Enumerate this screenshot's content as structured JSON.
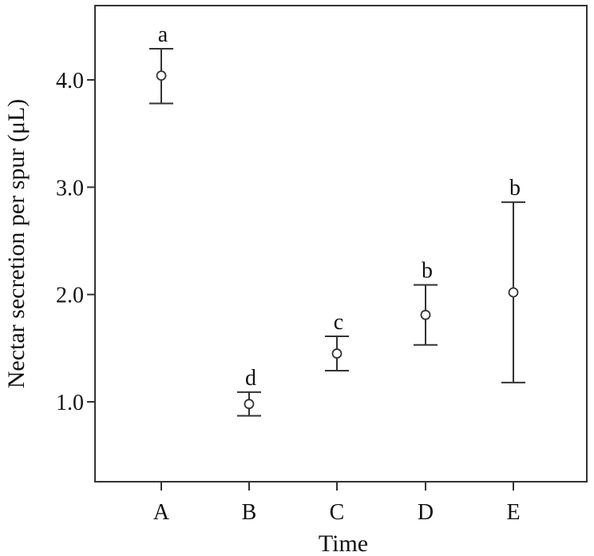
{
  "chart_data": {
    "type": "scatter",
    "title": "",
    "xlabel": "Time",
    "ylabel": "Nectar secretion per spur (μL)",
    "categories": [
      "A",
      "B",
      "C",
      "D",
      "E"
    ],
    "ylim": [
      0.0,
      4.75
    ],
    "yticks": [
      1.0,
      2.0,
      3.0,
      4.0
    ],
    "ytick_labels": [
      "1.0",
      "2.0",
      "3.0",
      "4.0"
    ],
    "grid": false,
    "legend": "none",
    "series": [
      {
        "values": [
          4.04,
          0.98,
          1.45,
          1.81,
          2.02
        ],
        "error_low": [
          3.78,
          0.87,
          1.29,
          1.53,
          1.18
        ],
        "error_high": [
          4.29,
          1.09,
          1.61,
          2.09,
          2.86
        ],
        "letters": [
          "a",
          "d",
          "c",
          "b",
          "b"
        ]
      }
    ],
    "colors": {
      "axis": "#333333",
      "marker": "#333333",
      "background": "#ffffff"
    }
  }
}
